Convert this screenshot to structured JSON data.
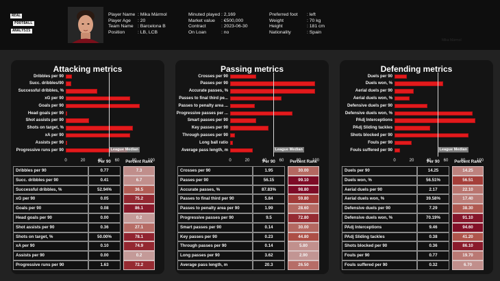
{
  "logo": {
    "lines": [
      "REAL",
      "FOOTBALL",
      "ANALYSIS"
    ],
    "icon": "logo-badge"
  },
  "player": {
    "photo_icon": "player-photo",
    "left_info": [
      {
        "label": "Player Name",
        "value": ": Mika Mármol"
      },
      {
        "label": "Player Age",
        "value": ": 20"
      },
      {
        "label": "Team Name",
        "value": ": Barcelona B"
      },
      {
        "label": "Position",
        "value": ": LB, LCB"
      }
    ],
    "mid_info": [
      {
        "label": "Minuted played",
        "value": ": 2,169"
      },
      {
        "label": "Market value",
        "value": ": €500,000"
      },
      {
        "label": "Contract",
        "value": ": 2023-06-30"
      },
      {
        "label": "On Loan",
        "value": ": no"
      }
    ],
    "right_info": [
      {
        "label": "Preferred foot",
        "value": ": left"
      },
      {
        "label": "Weight",
        "value": ": 70 kg"
      },
      {
        "label": "Height",
        "value": ": 181 cm"
      },
      {
        "label": "Nationality",
        "value": ": Spain"
      }
    ],
    "watermark": "Mika Mármol"
  },
  "colors": {
    "bar": "#e31a1c",
    "background": "#222222",
    "header": "#0e0e0e",
    "panel": "#141414",
    "rank_scale": [
      "#c49a98",
      "#9b1231",
      "#7d0a26"
    ]
  },
  "table_headers": {
    "per90": "Per 90",
    "rank": "Percent Rank"
  },
  "chart_data": [
    {
      "type": "bar",
      "orientation": "horizontal",
      "title": "Attacking metrics",
      "xlim": [
        0,
        100
      ],
      "xticks": [
        "0",
        "20",
        "40",
        "60",
        "80",
        "100"
      ],
      "median": 50,
      "median_label": "League Median",
      "categories": [
        "Dribbles per 90",
        "Succ. dribbles/90",
        "Successful dribbles, %",
        "xG per 90",
        "Goals per 90",
        "Head goals per 90",
        "Shot assists per 90",
        "Shots on target, %",
        "xA per 90",
        "Assists per 90",
        "Progressive runs per 90"
      ],
      "values": [
        7.3,
        6.7,
        36.5,
        75.2,
        86.1,
        0.2,
        27.1,
        78.1,
        74.9,
        0.2,
        72.2
      ],
      "table": {
        "names": [
          "Dribbles per 90",
          "Succ. dribbles per 90",
          "Successful dribbles, %",
          "xG per 90",
          "Goals per 90",
          "Head goals per 90",
          "Shot assists per 90",
          "Shots on target, %",
          "xA per 90",
          "Assists per 90",
          "Progressive runs per 90"
        ],
        "per90": [
          "0.77",
          "0.41",
          "52.94%",
          "0.05",
          "0.08",
          "0.00",
          "0.36",
          "50.00%",
          "0.10",
          "0.00",
          "1.63"
        ],
        "rank": [
          "7.3",
          "6.7",
          "36.5",
          "75.2",
          "86.1",
          "0.2",
          "27.1",
          "78.1",
          "74.9",
          "0.2",
          "72.2"
        ]
      }
    },
    {
      "type": "bar",
      "orientation": "horizontal",
      "title": "Passing metrics",
      "xlim": [
        0,
        100
      ],
      "xticks": [
        "0",
        "20",
        "40",
        "60",
        "80",
        "100"
      ],
      "median": 50,
      "median_label": "League Median",
      "categories": [
        "Crosses per 90",
        "Passes per 90",
        "Accurate passes, %",
        "Passes to final third pe...",
        "Passes to penalty area ...",
        "Progressive passes per ...",
        "Smart passes per 90",
        "Key passes per 90",
        "Through passes per 90",
        "Long ball ratio",
        "Average pass length, m"
      ],
      "values": [
        30.0,
        99.1,
        98.8,
        59.8,
        28.6,
        72.8,
        30.0,
        44.8,
        5.8,
        2.9,
        26.5
      ],
      "table": {
        "names": [
          "Crosses per 90",
          "Passes per 90",
          "Accurate passes, %",
          "Passes to final third per 90",
          "Passes to penalty area per 90",
          "Progressive passes per 90",
          "Smart passes per 90",
          "Key passes per 90",
          "Through passes per 90",
          "Long passes per 90",
          "Average pass length, m"
        ],
        "per90": [
          "1.95",
          "56.15",
          "87.83%",
          "5.84",
          "1.99",
          "9.5",
          "0.14",
          "0.23",
          "0.14",
          "3.62",
          "20.3"
        ],
        "rank": [
          "30.00",
          "99.10",
          "98.80",
          "59.80",
          "28.60",
          "72.80",
          "30.00",
          "44.80",
          "5.80",
          "2.90",
          "26.50"
        ]
      }
    },
    {
      "type": "bar",
      "orientation": "horizontal",
      "title": "Defending metrics",
      "xlim": [
        0,
        100
      ],
      "xticks": [
        "0",
        "20",
        "40",
        "60",
        "80",
        "100"
      ],
      "median": 50,
      "median_label": "League Median",
      "categories": [
        "Duels per 90",
        "Duels won, %",
        "Aerial duels per 90",
        "Aerial duels won, %",
        "Defensive duels per 90",
        "Defensive duels won, %",
        "PAdj Interceptions",
        "PAdj Sliding tackles",
        "Shots blocked per 90",
        "Fouls per 90",
        "Fouls suffered per 90"
      ],
      "values": [
        14.25,
        56.51,
        22.1,
        17.4,
        38.3,
        91.1,
        94.6,
        41.2,
        86.1,
        19.7,
        6.7
      ],
      "table": {
        "names": [
          "Duels per 90",
          "Duels won, %",
          "Aerial duels per 90",
          "Aerial duels won, %",
          "Defensive duels per 90",
          "Defensive duels won, %",
          "PAdj Interceptions",
          "PAdj Sliding tackles",
          "Shots blocked per 90",
          "Fouls per 90",
          "Fouls suffered per 90"
        ],
        "per90": [
          "14.25",
          "56.51%",
          "2.17",
          "39.58%",
          "7.29",
          "70.19%",
          "9.46",
          "0.38",
          "0.36",
          "0.77",
          "0.32"
        ],
        "rank": [
          "14.25",
          "56.51",
          "22.10",
          "17.40",
          "38.30",
          "91.10",
          "94.60",
          "41.20",
          "86.10",
          "19.70",
          "6.70"
        ]
      }
    }
  ]
}
